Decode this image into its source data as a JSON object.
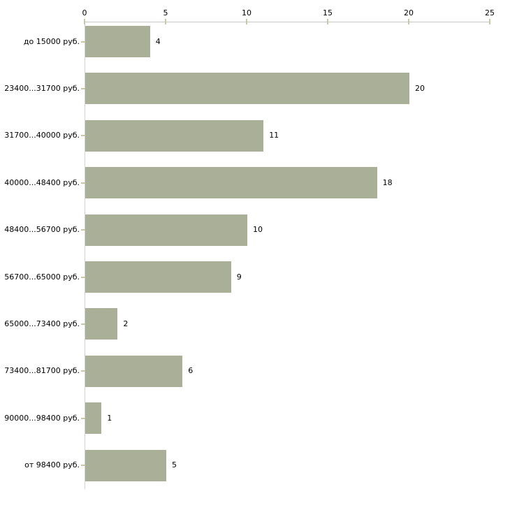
{
  "chart_data": {
    "type": "bar",
    "orientation": "horizontal",
    "title": "",
    "categories": [
      "до 15000 руб.",
      "23400...31700 руб.",
      "31700...40000 руб.",
      "40000...48400 руб.",
      "48400...56700 руб.",
      "56700...65000 руб.",
      "65000...73400 руб.",
      "73400...81700 руб.",
      "90000...98400 руб.",
      "от 98400 руб."
    ],
    "values": [
      4,
      20,
      11,
      18,
      10,
      9,
      2,
      6,
      1,
      5
    ],
    "x_ticks": [
      0,
      5,
      10,
      15,
      20,
      25
    ],
    "xlim": [
      0,
      25
    ],
    "axis_position": "top",
    "grid": false,
    "legend": "none",
    "colors": {
      "bar": "#aab097",
      "axis_line": "#c8c8c8",
      "left_axis_line": "#d4d4d4",
      "tick": "#c6c8a8",
      "text": "#000000",
      "background": "#ffffff"
    }
  }
}
